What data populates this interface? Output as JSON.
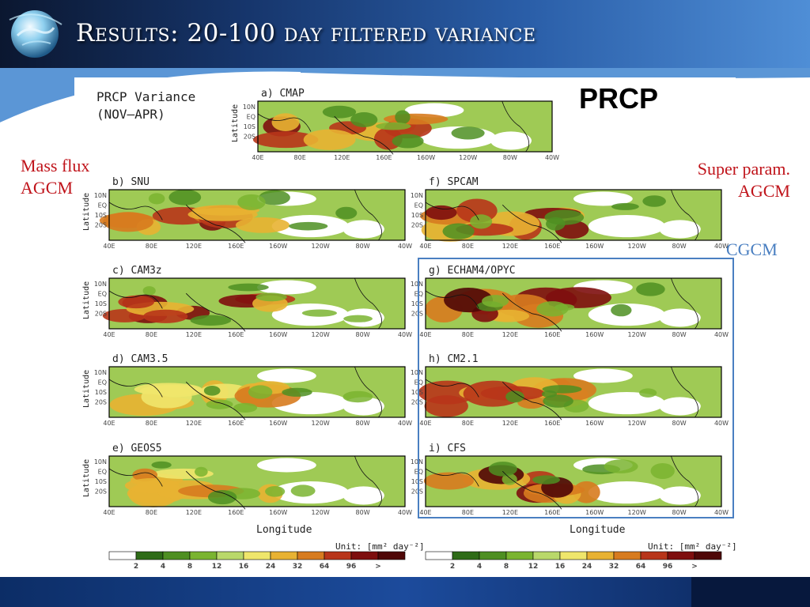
{
  "slide": {
    "title": "Results: 20-100 day filtered variance"
  },
  "figure": {
    "header_line1": "PRCP Variance",
    "header_line2": "(NOV–APR)",
    "big_label": "PRCP",
    "ylabel": "Latitude",
    "xlabel": "Longitude",
    "lat_ticks": [
      "10N",
      "EQ",
      "10S",
      "20S"
    ],
    "lon_ticks": [
      "40E",
      "80E",
      "120E",
      "160E",
      "160W",
      "120W",
      "80W",
      "40W"
    ],
    "unit_label": "Unit: [mm² day⁻²]",
    "colorbar_ticks": [
      "2",
      "4",
      "8",
      "12",
      "16",
      "24",
      "32",
      "64",
      "96",
      ">"
    ],
    "colorbar_colors": [
      "#ffffff",
      "#2e6b17",
      "#4e8f22",
      "#7ab430",
      "#b9d86a",
      "#efe66b",
      "#e8b232",
      "#d77b1f",
      "#b8351a",
      "#7e0e0e",
      "#4f0707"
    ],
    "panels": [
      {
        "label": "a)  CMAP",
        "group": "obs"
      },
      {
        "label": "b)  SNU",
        "group": "mass-flux"
      },
      {
        "label": "c)  CAM3z",
        "group": "mass-flux"
      },
      {
        "label": "d)  CAM3.5",
        "group": "mass-flux"
      },
      {
        "label": "e)  GEOS5",
        "group": "mass-flux"
      },
      {
        "label": "f)  SPCAM",
        "group": "super-param"
      },
      {
        "label": "g)  ECHAM4/OPYC",
        "group": "cgcm"
      },
      {
        "label": "h)  CM2.1",
        "group": "cgcm"
      },
      {
        "label": "i)  CFS",
        "group": "cgcm"
      }
    ]
  },
  "annotations": {
    "mass_flux_line1": "Mass flux",
    "mass_flux_line2": "AGCM",
    "super_param_line1": "Super param.",
    "super_param_line2": "AGCM",
    "cgcm": "CGCM",
    "colors": {
      "mass_flux": "#c0141b",
      "super_param": "#c0141b",
      "cgcm": "#4a7fc1"
    }
  }
}
